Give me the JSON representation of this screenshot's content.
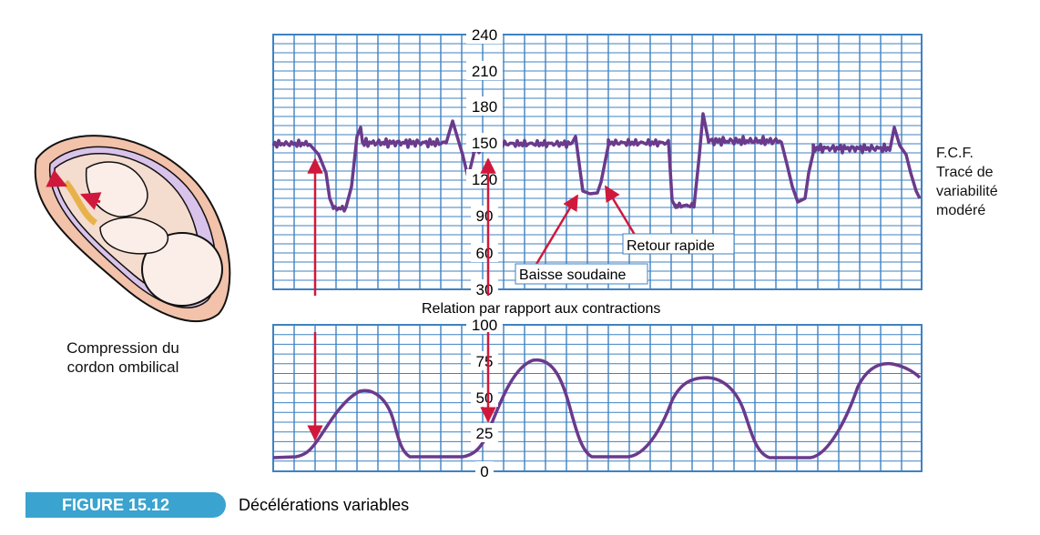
{
  "figure": {
    "label": "FIGURE 15.12",
    "title": "Décélérations variables"
  },
  "illustration": {
    "caption_line1": "Compression du",
    "caption_line2": "cordon ombilical"
  },
  "fhr_note": {
    "line1": "F.C.F.",
    "line2": "Tracé de",
    "line3": "variabilité",
    "line4": "modéré"
  },
  "annotations": {
    "retour": "Retour rapide",
    "baisse": "Baisse soudaine",
    "relation": "Relation par rapport aux contractions"
  },
  "colors": {
    "grid": "#3f82c2",
    "trace": "#6a3a8c",
    "arrow": "#d0183c",
    "badge": "#3aa3cf"
  },
  "chart_data": [
    {
      "type": "line",
      "series": [
        {
          "values": []
        }
      ],
      "y_ticks": [
        "240",
        "210",
        "180",
        "150",
        "120",
        "90",
        "60",
        "30"
      ],
      "ylim": [
        30,
        240
      ]
    },
    {
      "type": "line",
      "series": [
        {
          "values": []
        }
      ],
      "y_ticks": [
        "100",
        "75",
        "50",
        "25",
        "0"
      ],
      "ylim": [
        0,
        100
      ]
    }
  ]
}
